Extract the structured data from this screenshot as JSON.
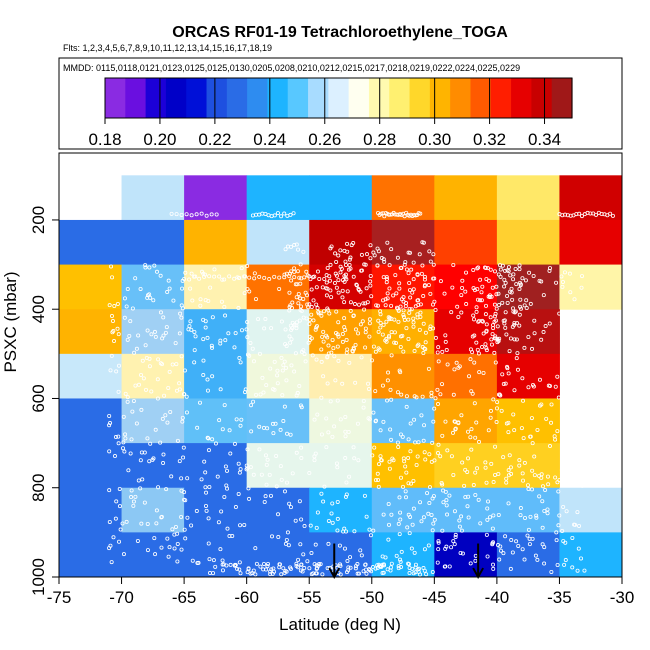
{
  "chart_data": {
    "type": "heatmap",
    "title": "ORCAS RF01-19 Tetrachloroethylene_TOGA",
    "flights_label": "Flts: 1,2,3,4,5,6,7,8,9,10,11,12,13,14,15,16,17,18,19",
    "dates_label": "MMDD: 0115,0118,0121,0123,0125,0125,0130,0205,0208,0210,0212,0215,0217,0218,0219,0222,0224,0225,0229",
    "xlabel": "Latitude (deg N)",
    "ylabel": "PSXC (mbar)",
    "xlim": [
      -75,
      -30
    ],
    "ylim": [
      1000,
      50
    ],
    "x_ticks": [
      -75,
      -70,
      -65,
      -60,
      -55,
      -50,
      -45,
      -40,
      -35,
      -30
    ],
    "y_ticks": [
      200,
      400,
      600,
      800,
      1000
    ],
    "colorbar": {
      "range": [
        0.18,
        0.35
      ],
      "ticks": [
        0.18,
        0.2,
        0.22,
        0.24,
        0.26,
        0.28,
        0.3,
        0.32,
        0.34
      ],
      "tick_labels": [
        "0.18",
        "0.20",
        "0.22",
        "0.24",
        "0.26",
        "0.28",
        "0.30",
        "0.32",
        "0.34"
      ],
      "colors": [
        "#8a2be2",
        "#6a0fe0",
        "#1c00d8",
        "#0000c8",
        "#0010d8",
        "#1e50e0",
        "#2a6ce6",
        "#2e8cf0",
        "#1eb4ff",
        "#58c8ff",
        "#a8dcff",
        "#dcf0ff",
        "#fffff0",
        "#fffab0",
        "#fff070",
        "#ffd72a",
        "#ffb400",
        "#ff8c00",
        "#ff5a00",
        "#ff1e00",
        "#e60000",
        "#c80000",
        "#a01818"
      ]
    },
    "y_bins": [
      100,
      200,
      300,
      400,
      500,
      600,
      700,
      800,
      900,
      1000
    ],
    "x_bins": [
      -75,
      -70,
      -65,
      -60,
      -55,
      -50,
      -45,
      -40,
      -35,
      -30
    ],
    "cells": [
      [
        null,
        "#c0e4fa",
        "#8a2be2",
        "#1eb4ff",
        "#1eb4ff",
        "#ff7200",
        "#ffb300",
        "#ffe868",
        "#d00000"
      ],
      [
        "#2a6ce6",
        "#2a6ce6",
        "#ffb300",
        "#c0e4fa",
        "#c00000",
        "#a82020",
        "#ff4000",
        "#ffd030",
        "#e60000"
      ],
      [
        "#ffc000",
        "#68c0f8",
        "#fff2b0",
        "#ff7200",
        "#d40000",
        "#ff1500",
        "#ff0000",
        "#a02020",
        "#fff5a8"
      ],
      [
        "#ffb300",
        "#a0d0f4",
        "#40b0f8",
        "#e0f4f0",
        "#ffa000",
        "#ffb000",
        "#e60000",
        "#b81010",
        null
      ],
      [
        "#c8e8fa",
        "#fff2b0",
        "#40b0f8",
        "#f0f8dc",
        "#ffeeb0",
        "#ff9000",
        "#ff7000",
        "#e60000",
        null
      ],
      [
        "#2a6ce6",
        "#a0d0f4",
        "#60c0f8",
        "#68c0f8",
        "#eef8e0",
        "#68c0f8",
        "#ffa500",
        "#ffc000",
        null
      ],
      [
        "#2a6ce6",
        "#2a6ce6",
        "#2a6ce6",
        "#e6f6ec",
        "#e6f6ec",
        "#ffc000",
        "#ffd020",
        "#ffd020",
        null
      ],
      [
        "#2a6ce6",
        "#8cc8f4",
        "#2a6ce6",
        "#2a6ce6",
        "#1eb4ff",
        "#60bcfa",
        "#60bcfa",
        "#60bcfa",
        "#c0e4fa"
      ],
      [
        "#2a6ce6",
        "#2a6ce6",
        "#2a6ce6",
        "#2a6ce6",
        "#2a6ce6",
        "#1eb4ff",
        "#0000c0",
        "#2a6ce6",
        "#1eb4ff"
      ]
    ],
    "arrows_at_latitude": [
      -53,
      -41.5
    ],
    "overlay": "white open-circle sample markers"
  }
}
